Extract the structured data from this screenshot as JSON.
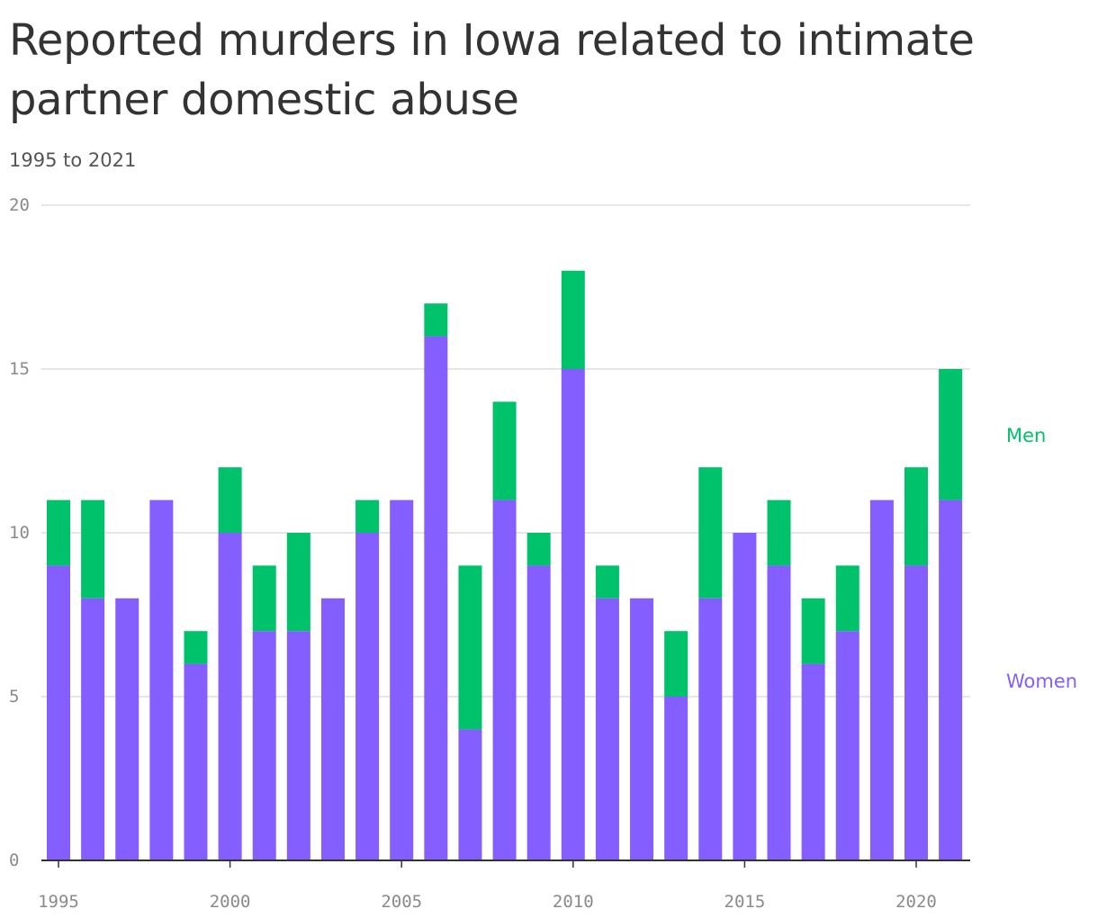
{
  "header": {
    "title": "Reported murders in Iowa related to intimate partner domestic abuse",
    "subtitle": "1995 to 2021"
  },
  "colors": {
    "women": "#845EFF",
    "men": "#00C26B",
    "grid": "#DDDDDD",
    "axis": "#333333"
  },
  "chart_data": {
    "type": "bar",
    "stacked": true,
    "title": "Reported murders in Iowa related to intimate partner domestic abuse",
    "subtitle": "1995 to 2021",
    "xlabel": "",
    "ylabel": "",
    "ylim": [
      0,
      20
    ],
    "yticks": [
      0,
      5,
      10,
      15,
      20
    ],
    "xticks": [
      1995,
      2000,
      2005,
      2010,
      2015,
      2020
    ],
    "grid": true,
    "legend": "right",
    "categories": [
      1995,
      1996,
      1997,
      1998,
      1999,
      2000,
      2001,
      2002,
      2003,
      2004,
      2005,
      2006,
      2007,
      2008,
      2009,
      2010,
      2011,
      2012,
      2013,
      2014,
      2015,
      2016,
      2017,
      2018,
      2019,
      2020,
      2021
    ],
    "series": [
      {
        "name": "Women",
        "color": "#845EFF",
        "values": [
          9,
          8,
          8,
          11,
          6,
          10,
          7,
          7,
          8,
          10,
          11,
          16,
          4,
          11,
          9,
          15,
          8,
          8,
          5,
          8,
          10,
          9,
          6,
          7,
          11,
          9,
          11
        ]
      },
      {
        "name": "Men",
        "color": "#00C26B",
        "values": [
          2,
          3,
          0,
          0,
          1,
          2,
          2,
          3,
          0,
          1,
          0,
          1,
          5,
          3,
          1,
          3,
          1,
          0,
          2,
          4,
          0,
          2,
          2,
          2,
          0,
          3,
          4
        ]
      }
    ]
  }
}
